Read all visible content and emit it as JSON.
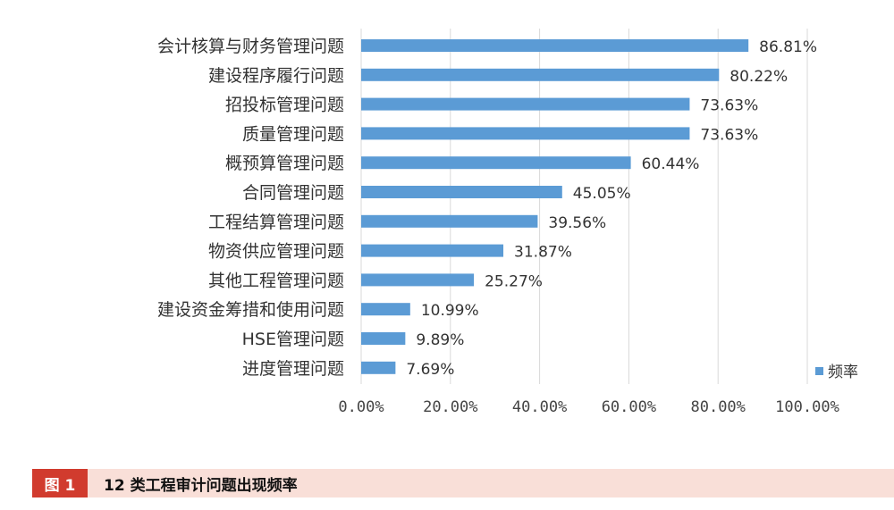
{
  "chart_data": {
    "type": "bar",
    "orientation": "horizontal",
    "categories": [
      "会计核算与财务管理问题",
      "建设程序履行问题",
      "招投标管理问题",
      "质量管理问题",
      "概预算管理问题",
      "合同管理问题",
      "工程结算管理问题",
      "物资供应管理问题",
      "其他工程管理问题",
      "建设资金筹措和使用问题",
      "HSE管理问题",
      "进度管理问题"
    ],
    "series": [
      {
        "name": "频率",
        "values": [
          86.81,
          80.22,
          73.63,
          73.63,
          60.44,
          45.05,
          39.56,
          31.87,
          25.27,
          10.99,
          9.89,
          7.69
        ],
        "labels": [
          "86.81%",
          "80.22%",
          "73.63%",
          "73.63%",
          "60.44%",
          "45.05%",
          "39.56%",
          "31.87%",
          "25.27%",
          "10.99%",
          "9.89%",
          "7.69%"
        ]
      }
    ],
    "x_ticks": [
      "0.00%",
      "20.00%",
      "40.00%",
      "60.00%",
      "80.00%",
      "100.00%"
    ],
    "xlim": [
      0,
      100
    ],
    "grid": "vertical",
    "legend": "bottom-right",
    "colors": {
      "bar": "#5b9bd5",
      "grid": "#d9d9d9"
    }
  },
  "caption": {
    "tag": "图 1",
    "title": "12 类工程审计问题出现频率"
  }
}
